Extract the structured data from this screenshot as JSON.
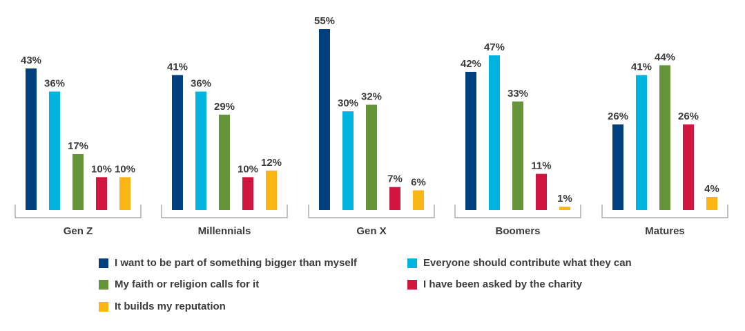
{
  "chart_data": {
    "type": "bar",
    "categories": [
      "Gen Z",
      "Millennials",
      "Gen X",
      "Boomers",
      "Matures"
    ],
    "series": [
      {
        "name": "I want to be part of something bigger than myself",
        "color": "#003f7d",
        "values": [
          43,
          41,
          55,
          42,
          26
        ]
      },
      {
        "name": "Everyone should contribute what they can",
        "color": "#00b4e0",
        "values": [
          36,
          36,
          30,
          47,
          41
        ]
      },
      {
        "name": "My faith or religion calls for it",
        "color": "#65943a",
        "values": [
          17,
          29,
          32,
          33,
          44
        ]
      },
      {
        "name": "I have been asked by the charity",
        "color": "#d0153f",
        "values": [
          10,
          10,
          7,
          11,
          26
        ]
      },
      {
        "name": "It builds my reputation",
        "color": "#fbb515",
        "values": [
          10,
          12,
          6,
          1,
          4
        ]
      }
    ],
    "value_suffix": "%",
    "ylim": [
      0,
      55
    ],
    "title": "",
    "xlabel": "",
    "ylabel": "",
    "legend_position": "bottom"
  }
}
